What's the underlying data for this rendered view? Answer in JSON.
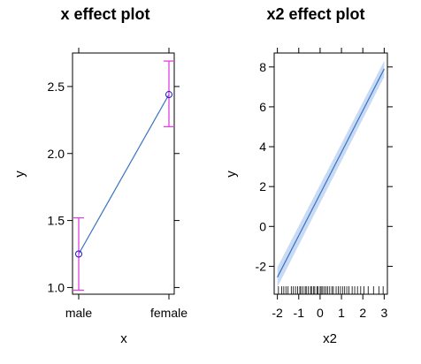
{
  "chart_data": [
    {
      "type": "line",
      "title": "x effect plot",
      "xlabel": "x",
      "ylabel": "y",
      "categories": [
        "male",
        "female"
      ],
      "ylim": [
        0.95,
        2.75
      ],
      "yticks": [
        "1.0",
        "1.5",
        "2.0",
        "2.5"
      ],
      "fit": [
        1.25,
        2.44
      ],
      "lower": [
        0.98,
        2.2
      ],
      "upper": [
        1.52,
        2.69
      ],
      "colors": {
        "line": "#3a74c4",
        "errorbar": "#e040e0",
        "point": "#1a1acc"
      },
      "grid": false
    },
    {
      "type": "line",
      "title": "x2 effect plot",
      "xlabel": "x2",
      "ylabel": "y",
      "xlim": [
        -2.15,
        3.15
      ],
      "ylim": [
        -3.4,
        8.7
      ],
      "xticks": [
        "-2",
        "-1",
        "0",
        "1",
        "2",
        "3"
      ],
      "yticks": [
        "-2",
        "0",
        "2",
        "4",
        "6",
        "8"
      ],
      "x": [
        -2,
        3
      ],
      "y": [
        -2.55,
        7.9
      ],
      "band_lower": [
        -3.05,
        7.5
      ],
      "band_upper": [
        -2.05,
        8.3
      ],
      "rug": [
        -1.95,
        -1.8,
        -1.7,
        -1.6,
        -1.5,
        -1.35,
        -1.25,
        -1.15,
        -1.05,
        -0.95,
        -0.9,
        -0.8,
        -0.7,
        -0.65,
        -0.55,
        -0.45,
        -0.4,
        -0.3,
        -0.25,
        -0.15,
        -0.1,
        0.0,
        0.05,
        0.12,
        0.2,
        0.28,
        0.35,
        0.45,
        0.55,
        0.62,
        0.75,
        0.85,
        0.95,
        1.05,
        1.15,
        1.25,
        1.35,
        1.5,
        1.62,
        1.75,
        1.9,
        2.05,
        2.25,
        2.5,
        2.75,
        2.95
      ],
      "colors": {
        "line": "#3a74c4",
        "band": "#c8daf4",
        "rug": "#000000"
      },
      "grid": false
    }
  ]
}
